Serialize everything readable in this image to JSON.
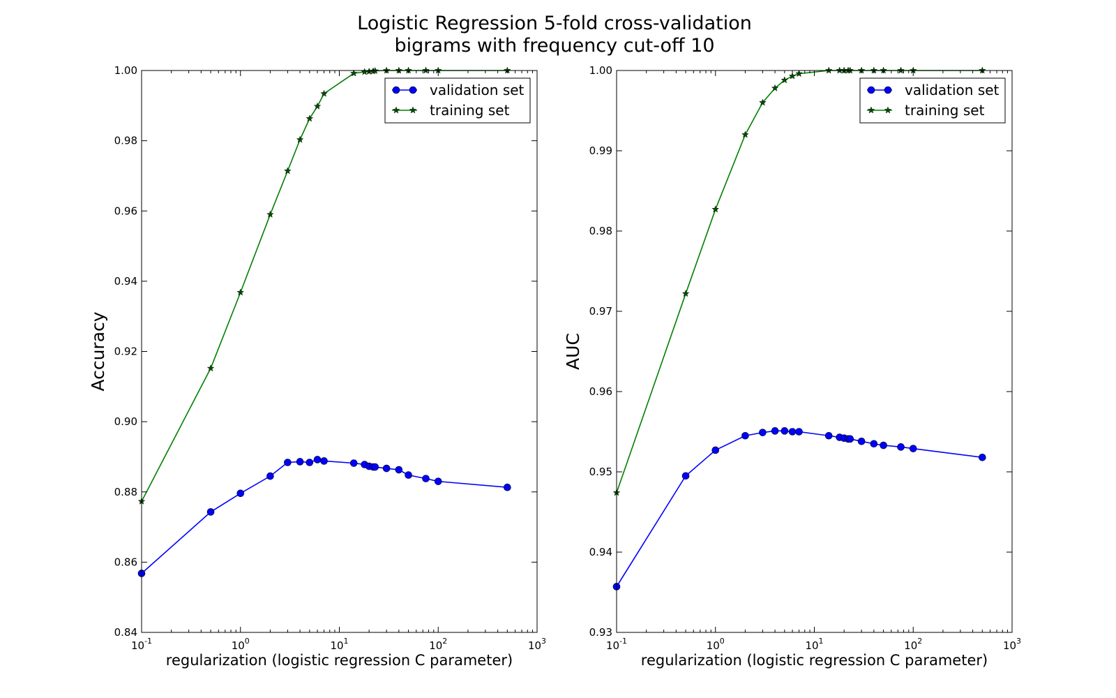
{
  "title": {
    "line1": "Logistic Regression 5-fold cross-validation",
    "line2": "bigrams with frequency cut-off 10"
  },
  "colors": {
    "validation": "#0000ff",
    "training": "#007f00",
    "training_marker": "#004c00"
  },
  "chart_data": [
    {
      "type": "line",
      "xscale": "log",
      "xlim": [
        0.1,
        1000
      ],
      "ylim": [
        0.84,
        1.0
      ],
      "xlabel": "regularization (logistic regression C parameter)",
      "ylabel": "Accuracy",
      "legend_position": "top-right",
      "x_ticks": [
        {
          "base": "10",
          "exp": "-1",
          "value": 0.1
        },
        {
          "base": "10",
          "exp": "0",
          "value": 1
        },
        {
          "base": "10",
          "exp": "1",
          "value": 10
        },
        {
          "base": "10",
          "exp": "2",
          "value": 100
        },
        {
          "base": "10",
          "exp": "3",
          "value": 1000
        }
      ],
      "y_ticks": [
        "0.84",
        "0.86",
        "0.88",
        "0.90",
        "0.92",
        "0.94",
        "0.96",
        "0.98",
        "1.00"
      ],
      "series": [
        {
          "name": "validation set",
          "marker": "circle",
          "x": [
            0.1,
            0.5,
            1,
            2,
            3,
            4,
            5,
            6,
            7,
            14,
            18,
            20,
            22,
            23,
            30,
            40,
            50,
            75,
            100,
            500
          ],
          "y": [
            0.8568,
            0.8743,
            0.8796,
            0.8845,
            0.8884,
            0.8886,
            0.8884,
            0.8892,
            0.8888,
            0.8882,
            0.8878,
            0.8873,
            0.8871,
            0.8871,
            0.8867,
            0.8863,
            0.8848,
            0.8838,
            0.883,
            0.8813
          ]
        },
        {
          "name": "training set",
          "marker": "star",
          "x": [
            0.1,
            0.5,
            1,
            2,
            3,
            4,
            5,
            6,
            7,
            14,
            18,
            20,
            22,
            23,
            30,
            40,
            50,
            75,
            100,
            500
          ],
          "y": [
            0.8773,
            0.9152,
            0.9368,
            0.959,
            0.9714,
            0.9803,
            0.9863,
            0.9898,
            0.9934,
            0.9992,
            0.9996,
            0.9997,
            0.9998,
            0.9999,
            1.0,
            1.0,
            1.0,
            1.0,
            1.0,
            1.0
          ]
        }
      ]
    },
    {
      "type": "line",
      "xscale": "log",
      "xlim": [
        0.1,
        1000
      ],
      "ylim": [
        0.93,
        1.0
      ],
      "xlabel": "regularization (logistic regression C parameter)",
      "ylabel": "AUC",
      "legend_position": "top-right",
      "x_ticks": [
        {
          "base": "10",
          "exp": "-1",
          "value": 0.1
        },
        {
          "base": "10",
          "exp": "0",
          "value": 1
        },
        {
          "base": "10",
          "exp": "1",
          "value": 10
        },
        {
          "base": "10",
          "exp": "2",
          "value": 100
        },
        {
          "base": "10",
          "exp": "3",
          "value": 1000
        }
      ],
      "y_ticks": [
        "0.93",
        "0.94",
        "0.95",
        "0.96",
        "0.97",
        "0.98",
        "0.99",
        "1.00"
      ],
      "series": [
        {
          "name": "validation set",
          "marker": "circle",
          "x": [
            0.1,
            0.5,
            1,
            2,
            3,
            4,
            5,
            6,
            7,
            14,
            18,
            20,
            22,
            23,
            30,
            40,
            50,
            75,
            100,
            500
          ],
          "y": [
            0.9357,
            0.9495,
            0.9527,
            0.9545,
            0.9549,
            0.9551,
            0.9551,
            0.955,
            0.955,
            0.9545,
            0.9543,
            0.9542,
            0.9541,
            0.9541,
            0.9538,
            0.9535,
            0.9533,
            0.9531,
            0.9529,
            0.9518
          ]
        },
        {
          "name": "training set",
          "marker": "star",
          "x": [
            0.1,
            0.5,
            1,
            2,
            3,
            4,
            5,
            6,
            7,
            14,
            18,
            20,
            22,
            23,
            30,
            40,
            50,
            75,
            100,
            500
          ],
          "y": [
            0.9474,
            0.9722,
            0.9827,
            0.992,
            0.996,
            0.9978,
            0.9988,
            0.9993,
            0.9996,
            1.0,
            1.0,
            1.0,
            1.0,
            1.0,
            1.0,
            1.0,
            1.0,
            1.0,
            1.0,
            1.0
          ]
        }
      ]
    }
  ]
}
